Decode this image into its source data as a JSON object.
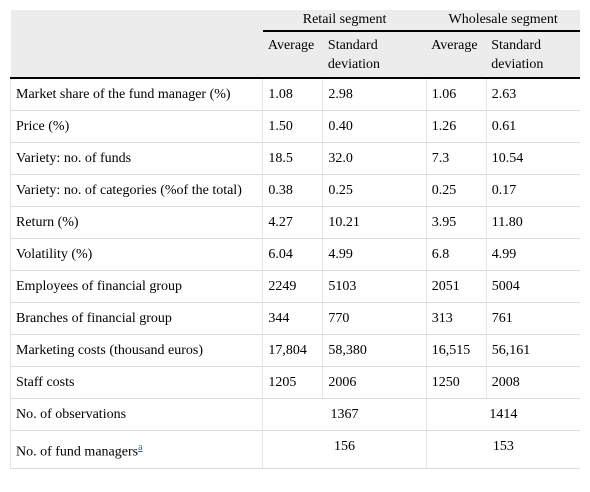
{
  "header": {
    "groups": [
      "Retail segment",
      "Wholesale segment"
    ],
    "subcolumns": [
      "Average",
      "Standard deviation",
      "Average",
      "Standard deviation"
    ]
  },
  "rows": [
    {
      "label": "Market share of the fund manager (%)",
      "cells": [
        "1.08",
        "2.98",
        "1.06",
        "2.63"
      ]
    },
    {
      "label": "Price (%)",
      "cells": [
        "1.50",
        "0.40",
        "1.26",
        "0.61"
      ]
    },
    {
      "label": "Variety: no. of funds",
      "cells": [
        "18.5",
        "32.0",
        "7.3",
        "10.54"
      ]
    },
    {
      "label": "Variety: no. of categories (%of the total)",
      "cells": [
        "0.38",
        "0.25",
        "0.25",
        "0.17"
      ]
    },
    {
      "label": "Return (%)",
      "cells": [
        "4.27",
        "10.21",
        "3.95",
        "11.80"
      ]
    },
    {
      "label": "Volatility (%)",
      "cells": [
        "6.04",
        "4.99",
        "6.8",
        "4.99"
      ]
    },
    {
      "label": "Employees of financial group",
      "cells": [
        "2249",
        "5103",
        "2051",
        "5004"
      ]
    },
    {
      "label": "Branches of financial group",
      "cells": [
        "344",
        "770",
        "313",
        "761"
      ]
    },
    {
      "label": "Marketing costs (thousand euros)",
      "cells": [
        "17,804",
        "58,380",
        "16,515",
        "56,161"
      ]
    },
    {
      "label": "Staff costs",
      "cells": [
        "1205",
        "2006",
        "1250",
        "2008"
      ]
    }
  ],
  "summary_rows": [
    {
      "label": "No. of observations",
      "retail": "1367",
      "wholesale": "1414",
      "footnote": ""
    },
    {
      "label": "No. of fund managers",
      "retail": "156",
      "wholesale": "153",
      "footnote": "a"
    }
  ]
}
